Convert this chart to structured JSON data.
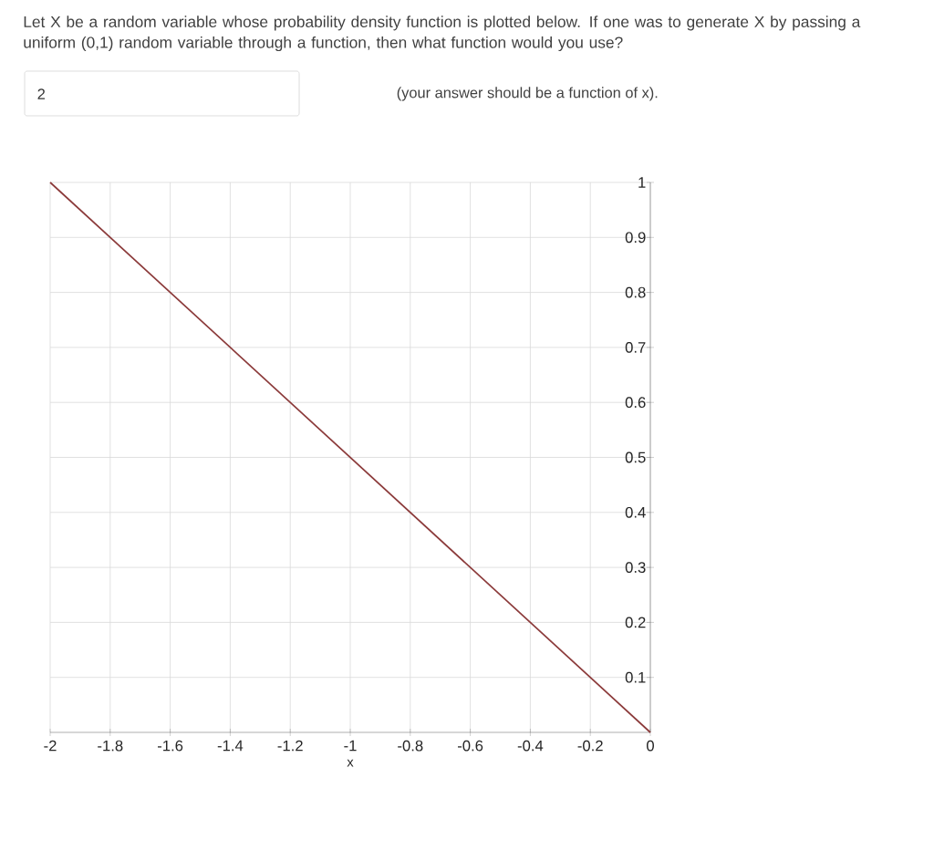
{
  "chart_data": {
    "type": "line",
    "title": "Let X be a random variable whose probability density function is plotted below. If one was to generate X by passing a uniform (0,1) random variable through a function, then what function would you use?",
    "annotations": [
      "2",
      "(your answer should be a function of x)."
    ],
    "xlabel": "x",
    "x": [
      -2,
      0
    ],
    "series": [
      {
        "color": "#8b3a3a",
        "values": [
          1,
          0
        ]
      }
    ],
    "xlim": [
      -2,
      0
    ],
    "ylim": [
      0,
      1
    ],
    "xticks": [
      -2,
      -1.8,
      -1.6,
      -1.4,
      -1.2,
      -1,
      -0.8,
      -0.6,
      -0.4,
      -0.2,
      0
    ],
    "yticks": [
      0.1,
      0.2,
      0.3,
      0.4,
      0.5,
      0.6,
      0.7,
      0.8,
      0.9,
      1
    ],
    "grid": true
  }
}
